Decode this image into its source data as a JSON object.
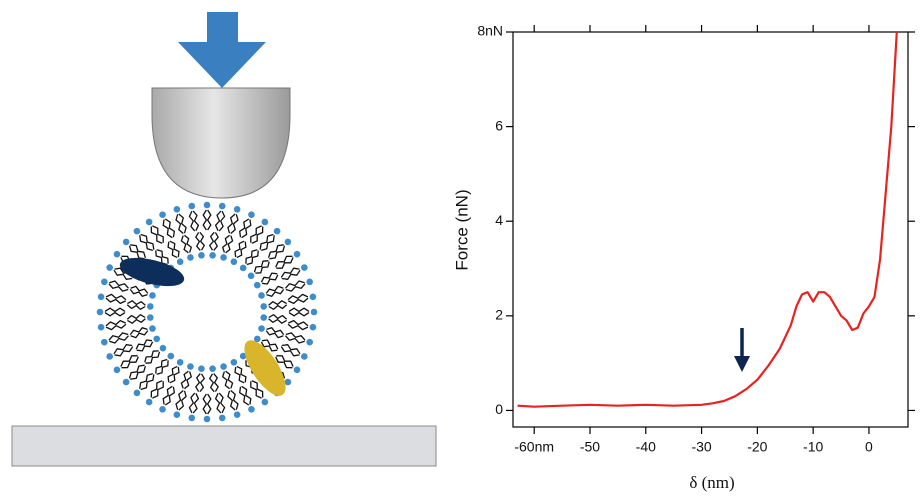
{
  "chart_data": {
    "type": "line",
    "xlabel": "δ (nm)",
    "ylabel": "Force (nN)",
    "x": [
      -63,
      -60,
      -55,
      -50,
      -45,
      -40,
      -35,
      -30,
      -28,
      -26,
      -24,
      -22,
      -20,
      -18,
      -16,
      -14,
      -13,
      -12,
      -11,
      -10,
      -9,
      -8,
      -7,
      -6,
      -5,
      -4,
      -3,
      -2,
      -1,
      0,
      1,
      2,
      3,
      4,
      5
    ],
    "values": [
      0.1,
      0.08,
      0.1,
      0.12,
      0.1,
      0.12,
      0.1,
      0.12,
      0.15,
      0.2,
      0.3,
      0.45,
      0.65,
      0.95,
      1.3,
      1.8,
      2.2,
      2.45,
      2.5,
      2.3,
      2.5,
      2.5,
      2.4,
      2.2,
      2.0,
      1.9,
      1.7,
      1.75,
      2.05,
      2.2,
      2.4,
      3.2,
      4.6,
      6.0,
      8.0
    ],
    "color": "#e8231f",
    "xlim": [
      -63.8,
      7.0
    ],
    "ylim": [
      -0.35,
      8
    ],
    "xticks": [
      {
        "value": -60,
        "label": "-60nm"
      },
      -50,
      -40,
      -30,
      -20,
      -10,
      0
    ],
    "yticks": [
      0,
      2,
      4,
      6,
      {
        "value": 8,
        "label": "8nN"
      }
    ]
  }
}
